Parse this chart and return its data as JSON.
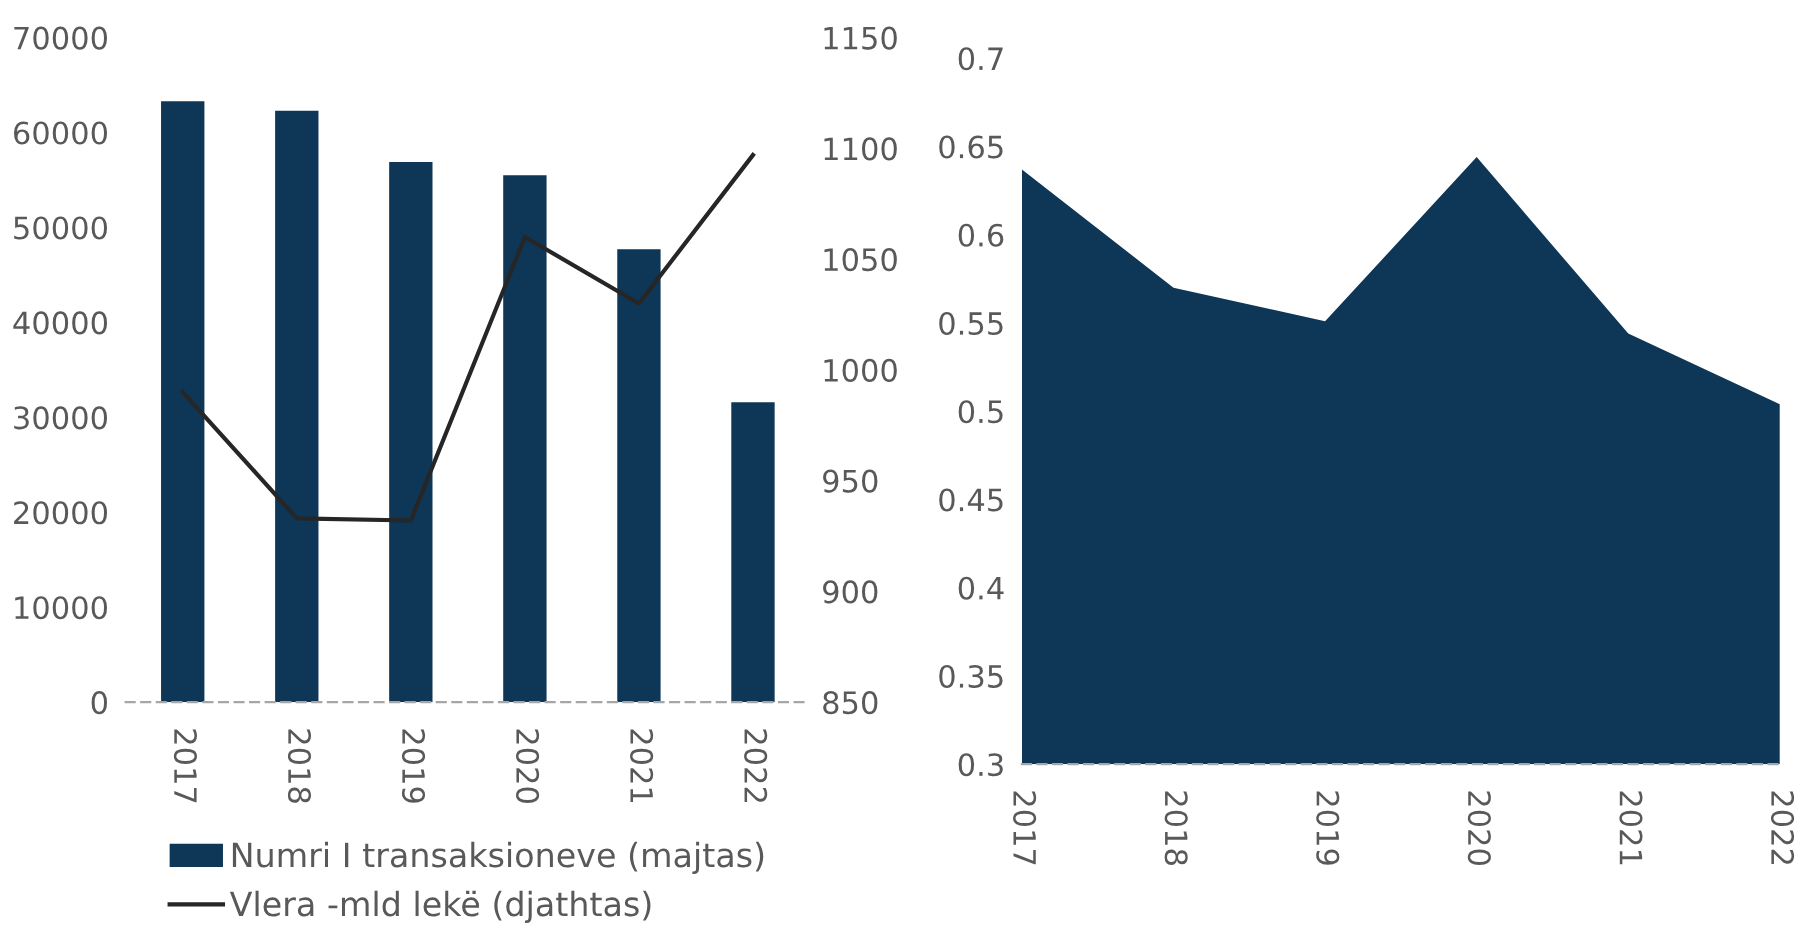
{
  "chart_data": [
    {
      "type": "bar",
      "categories": [
        "2017",
        "2018",
        "2019",
        "2020",
        "2021",
        "2022"
      ],
      "series": [
        {
          "name": "Numri I transaksioneve (majtas)",
          "color": "#0e3657",
          "values": [
            63300,
            62300,
            56900,
            55500,
            47700,
            31600
          ]
        },
        {
          "name": "Vlera -mld lekë (djathtas)",
          "type": "line",
          "axis": "y2",
          "color": "#262626",
          "values": [
            990,
            933,
            932,
            1060,
            1030,
            1097
          ]
        }
      ],
      "ylim": [
        0,
        70000
      ],
      "yticks": [
        0,
        10000,
        20000,
        30000,
        40000,
        50000,
        60000,
        70000
      ],
      "y2lim": [
        850,
        1150
      ],
      "y2ticks": [
        850,
        900,
        950,
        1000,
        1050,
        1100,
        1150
      ],
      "legend": "bottom",
      "grid": false
    },
    {
      "type": "area",
      "categories": [
        "2017",
        "2018",
        "2019",
        "2020",
        "2021",
        "2022"
      ],
      "values": [
        0.637,
        0.57,
        0.551,
        0.644,
        0.544,
        0.504
      ],
      "color": "#0e3657",
      "ylim": [
        0.3,
        0.7
      ],
      "yticks": [
        0.3,
        0.35,
        0.4,
        0.45,
        0.5,
        0.55,
        0.6,
        0.65,
        0.7
      ],
      "grid": false
    }
  ]
}
